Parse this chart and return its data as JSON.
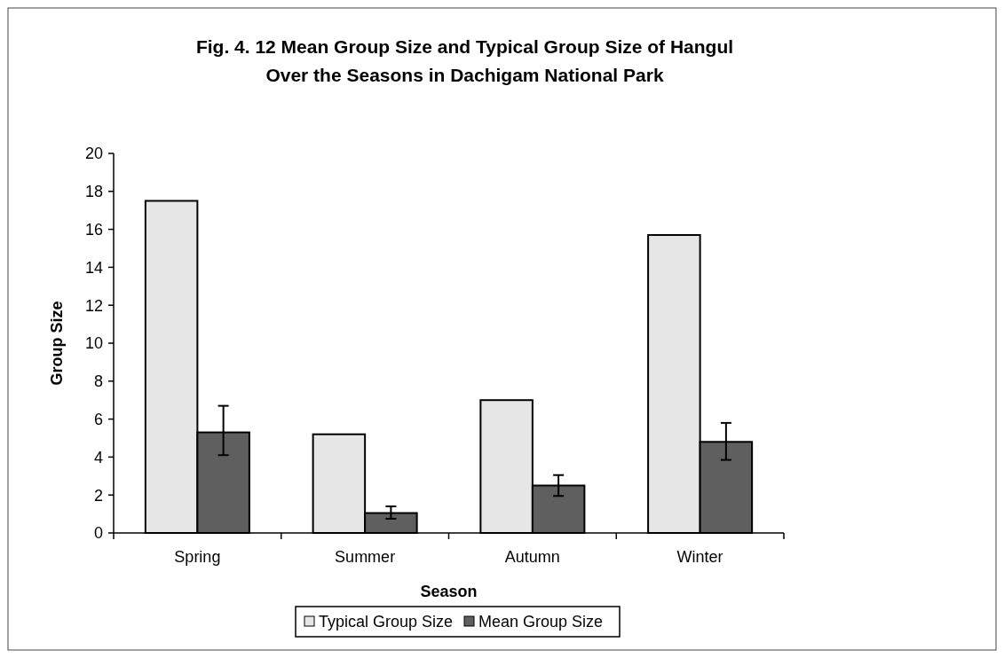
{
  "chart_data": {
    "type": "bar",
    "title": "Fig. 4. 12 Mean Group Size and Typical Group Size of Hangul Over the Seasons in Dachigam National Park",
    "xlabel": "Season",
    "ylabel": "Group Size",
    "categories": [
      "Spring",
      "Summer",
      "Autumn",
      "Winter"
    ],
    "series": [
      {
        "name": "Typical Group Size",
        "color": "#e6e6e6",
        "values": [
          17.5,
          5.2,
          7.0,
          15.7
        ]
      },
      {
        "name": "Mean Group Size",
        "color": "#5f5f5f",
        "values": [
          5.3,
          1.05,
          2.5,
          4.8
        ],
        "errors": [
          [
            4.1,
            6.7
          ],
          [
            0.75,
            1.4
          ],
          [
            1.95,
            3.05
          ],
          [
            3.85,
            5.8
          ]
        ]
      }
    ],
    "ylim": [
      0,
      20
    ],
    "yticks": [
      0,
      2,
      4,
      6,
      8,
      10,
      12,
      14,
      16,
      18,
      20
    ],
    "grid": false,
    "legend": "bottom"
  }
}
